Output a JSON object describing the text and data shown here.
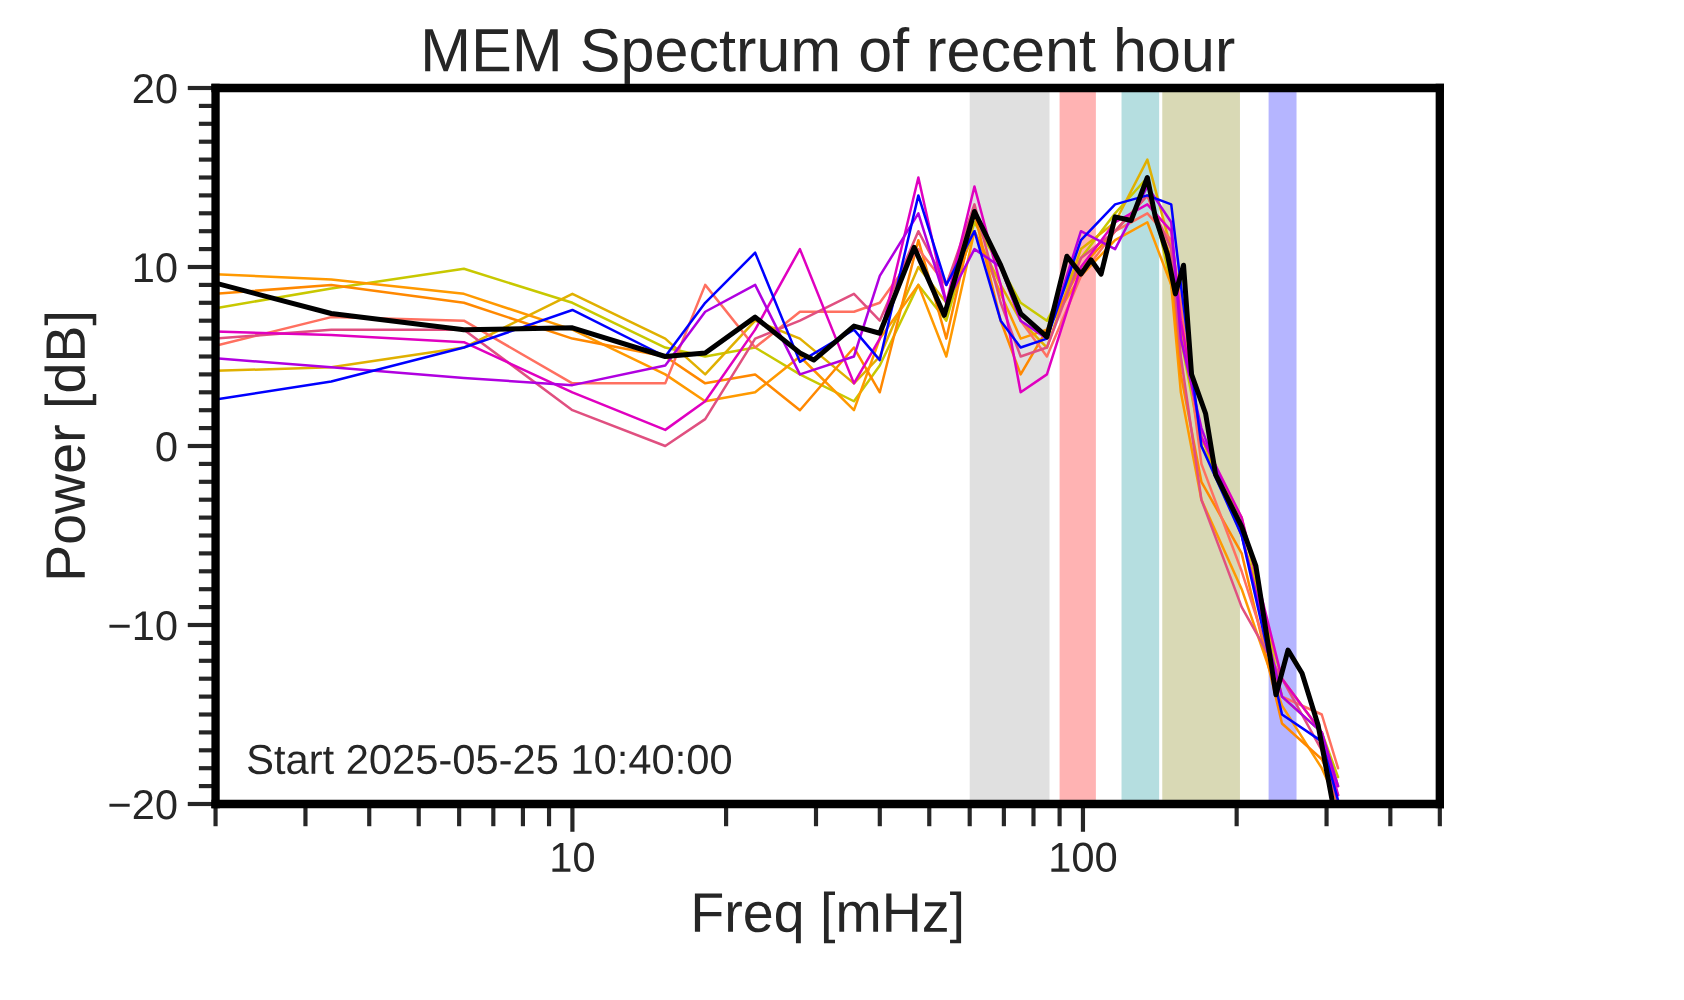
{
  "chart_data": {
    "type": "line",
    "title": "MEM Spectrum of recent hour",
    "xlabel": "Freq [mHz]",
    "ylabel": "Power [dB]",
    "log": "x",
    "grid": false,
    "marker": "none",
    "line_style": "solid",
    "annotations": [
      "Start 2025-05-25 10:40:00"
    ],
    "xlim": [
      2,
      500
    ],
    "xticks": [
      {
        "value": 2,
        "label": null
      },
      {
        "value": 3,
        "label": null
      },
      {
        "value": 4,
        "label": null
      },
      {
        "value": 5,
        "label": null
      },
      {
        "value": 6,
        "label": null
      },
      {
        "value": 7,
        "label": null
      },
      {
        "value": 8,
        "label": null
      },
      {
        "value": 9,
        "label": null
      },
      10,
      {
        "value": 20,
        "label": null
      },
      {
        "value": 30,
        "label": null
      },
      {
        "value": 40,
        "label": null
      },
      {
        "value": 50,
        "label": null
      },
      {
        "value": 60,
        "label": null
      },
      {
        "value": 70,
        "label": null
      },
      {
        "value": 80,
        "label": null
      },
      {
        "value": 90,
        "label": null
      },
      100,
      {
        "value": 200,
        "label": null
      },
      {
        "value": 300,
        "label": null
      },
      {
        "value": 400,
        "label": null
      },
      {
        "value": 500,
        "label": null
      }
    ],
    "ylim": [
      -20,
      20
    ],
    "yticks": [
      {
        "value": -20,
        "label": "−20"
      },
      {
        "value": -19,
        "label": null
      },
      {
        "value": -18,
        "label": null
      },
      {
        "value": -17,
        "label": null
      },
      {
        "value": -16,
        "label": null
      },
      {
        "value": -15,
        "label": null
      },
      {
        "value": -14,
        "label": null
      },
      {
        "value": -13,
        "label": null
      },
      {
        "value": -12,
        "label": null
      },
      {
        "value": -11,
        "label": null
      },
      {
        "value": -10,
        "label": "−10"
      },
      {
        "value": -9,
        "label": null
      },
      {
        "value": -8,
        "label": null
      },
      {
        "value": -7,
        "label": null
      },
      {
        "value": -6,
        "label": null
      },
      {
        "value": -5,
        "label": null
      },
      {
        "value": -4,
        "label": null
      },
      {
        "value": -3,
        "label": null
      },
      {
        "value": -2,
        "label": null
      },
      {
        "value": -1,
        "label": null
      },
      0,
      {
        "value": 1,
        "label": null
      },
      {
        "value": 2,
        "label": null
      },
      {
        "value": 3,
        "label": null
      },
      {
        "value": 4,
        "label": null
      },
      {
        "value": 5,
        "label": null
      },
      {
        "value": 6,
        "label": null
      },
      {
        "value": 7,
        "label": null
      },
      {
        "value": 8,
        "label": null
      },
      {
        "value": 9,
        "label": null
      },
      10,
      {
        "value": 11,
        "label": null
      },
      {
        "value": 12,
        "label": null
      },
      {
        "value": 13,
        "label": null
      },
      {
        "value": 14,
        "label": null
      },
      {
        "value": 15,
        "label": null
      },
      {
        "value": 16,
        "label": null
      },
      {
        "value": 17,
        "label": null
      },
      {
        "value": 18,
        "label": null
      },
      {
        "value": 19,
        "label": null
      },
      20
    ],
    "bands": [
      {
        "axis": "x",
        "from": 60,
        "to": 86,
        "color": "#e0e0e0"
      },
      {
        "axis": "x",
        "from": 90,
        "to": 106,
        "color": "#ffb3b3"
      },
      {
        "axis": "x",
        "from": 119,
        "to": 141,
        "color": "#b5dee0"
      },
      {
        "axis": "x",
        "from": 143,
        "to": 203,
        "color": "#d9d9b5"
      },
      {
        "axis": "x",
        "from": 231,
        "to": 262,
        "color": "#b5b5ff"
      }
    ],
    "x": [
      2.0,
      3.37,
      6.13,
      10,
      15.2,
      18.2,
      22.8,
      27.9,
      35.6,
      40,
      47.6,
      54,
      61.3,
      69,
      75.5,
      85,
      99.1,
      115.6,
      133.7,
      148.9,
      155.5,
      170.6,
      204.6,
      245.4,
      293.6,
      316
    ],
    "series": [
      {
        "color": "#c8c800",
        "values": [
          7.7,
          8.8,
          9.9,
          8.0,
          5.5,
          5.0,
          5.5,
          4.0,
          2.5,
          4.5,
          9.0,
          7.0,
          12.5,
          10.0,
          8.0,
          7.0,
          10.5,
          13.0,
          15.0,
          9.0,
          6.0,
          0.0,
          -4.0,
          -14.0,
          -16.0,
          -18.5
        ]
      },
      {
        "color": "#e0b000",
        "values": [
          4.2,
          4.4,
          5.5,
          8.5,
          6.0,
          4.0,
          7.0,
          6.0,
          3.5,
          5.0,
          10.0,
          8.0,
          12.0,
          9.0,
          7.0,
          5.5,
          11.0,
          12.5,
          16.0,
          11.0,
          6.5,
          0.5,
          -5.0,
          -13.0,
          -16.0,
          -19.0
        ]
      },
      {
        "color": "#ff9900",
        "values": [
          9.6,
          9.3,
          8.5,
          6.5,
          4.0,
          2.5,
          3.0,
          5.0,
          2.0,
          6.0,
          9.0,
          5.0,
          12.0,
          8.5,
          6.0,
          6.5,
          9.5,
          11.5,
          12.5,
          9.0,
          3.0,
          -3.0,
          -8.0,
          -14.5,
          -18.0,
          -20.0
        ]
      },
      {
        "color": "#ff8800",
        "values": [
          8.5,
          9.0,
          8.0,
          6.0,
          5.0,
          3.5,
          4.0,
          2.0,
          5.5,
          3.0,
          11.5,
          6.0,
          13.0,
          7.0,
          4.0,
          6.5,
          10.0,
          12.0,
          14.0,
          10.5,
          4.0,
          -2.0,
          -6.0,
          -15.5,
          -17.5,
          -19.5
        ]
      },
      {
        "color": "#ff7060",
        "values": [
          5.6,
          7.2,
          7.0,
          3.5,
          3.5,
          9.0,
          5.5,
          7.5,
          7.5,
          8.0,
          11.0,
          9.0,
          13.0,
          10.0,
          7.0,
          5.0,
          9.5,
          12.0,
          13.0,
          11.5,
          8.0,
          -1.0,
          -7.0,
          -14.0,
          -15.0,
          -18.0
        ]
      },
      {
        "color": "#e05080",
        "values": [
          6.0,
          6.5,
          6.5,
          2.0,
          0.0,
          1.5,
          6.0,
          7.0,
          8.5,
          7.0,
          12.0,
          9.0,
          13.5,
          8.0,
          5.0,
          5.5,
          10.5,
          12.0,
          14.0,
          11.0,
          5.0,
          -3.0,
          -9.0,
          -13.0,
          -17.0,
          -20.0
        ]
      },
      {
        "color": "#e000c0",
        "values": [
          6.4,
          6.2,
          5.8,
          3.0,
          0.9,
          2.5,
          6.5,
          11.0,
          3.5,
          6.0,
          15.0,
          8.0,
          14.5,
          9.0,
          3.0,
          4.0,
          10.0,
          12.5,
          13.5,
          12.0,
          7.0,
          0.5,
          -4.0,
          -13.0,
          -16.0,
          -19.5
        ]
      },
      {
        "color": "#b000e0",
        "values": [
          4.9,
          4.4,
          3.8,
          3.4,
          4.5,
          7.5,
          9.0,
          4.0,
          5.0,
          9.5,
          13.0,
          8.0,
          11.0,
          10.0,
          7.0,
          6.0,
          12.0,
          11.0,
          14.5,
          12.5,
          6.0,
          1.0,
          -5.0,
          -14.0,
          -16.0,
          -19.0
        ]
      },
      {
        "color": "#0000ff",
        "values": [
          2.6,
          3.6,
          5.5,
          7.6,
          5.0,
          8.0,
          10.8,
          4.7,
          6.5,
          4.8,
          14.0,
          9.0,
          12.0,
          7.0,
          5.5,
          6.0,
          11.5,
          13.5,
          14.0,
          13.5,
          9.0,
          0.0,
          -5.0,
          -15.0,
          -16.5,
          -19.8
        ]
      },
      {
        "color": "#000000",
        "x": [
          2.0,
          3.37,
          6.13,
          10,
          15.2,
          18.2,
          22.8,
          27.9,
          29.7,
          35.6,
          40.0,
          46.7,
          53.5,
          61.3,
          69.0,
          75.5,
          85.0,
          93.0,
          99.1,
          103.7,
          108.5,
          115.6,
          124.3,
          133.7,
          138.6,
          146.4,
          151.7,
          157.4,
          163.2,
          173.9,
          181.9,
          204.6,
          218.1,
          238.8,
          252.1,
          268.6,
          288.8,
          307.7
        ],
        "values": [
          9.1,
          7.4,
          6.5,
          6.6,
          5.0,
          5.2,
          7.2,
          5.2,
          4.8,
          6.7,
          6.3,
          11.1,
          7.3,
          13.1,
          10.1,
          7.4,
          6.1,
          10.6,
          9.6,
          10.4,
          9.6,
          12.8,
          12.6,
          15.0,
          12.8,
          10.7,
          8.5,
          10.1,
          4.0,
          1.8,
          -1.6,
          -4.5,
          -6.7,
          -13.9,
          -11.4,
          -12.7,
          -15.6,
          -19.8
        ]
      }
    ]
  }
}
